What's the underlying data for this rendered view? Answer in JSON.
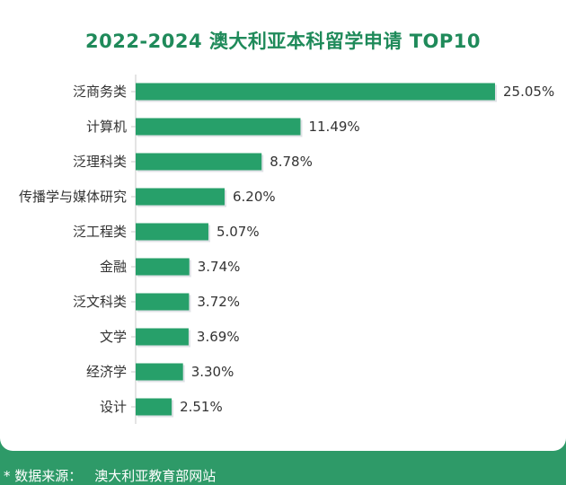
{
  "chart_data": {
    "type": "bar",
    "orientation": "horizontal",
    "title": "2022-2024 澳大利亚本科留学申请 TOP10",
    "categories": [
      "泛商务类",
      "计算机",
      "泛理科类",
      "传播学与媒体研究",
      "泛工程类",
      "金融",
      "泛文科类",
      "文学",
      "经济学",
      "设计"
    ],
    "values": [
      25.05,
      11.49,
      8.78,
      6.2,
      5.07,
      3.74,
      3.72,
      3.69,
      3.3,
      2.51
    ],
    "value_labels": [
      "25.05%",
      "11.49%",
      "8.78%",
      "6.20%",
      "5.07%",
      "3.74%",
      "3.72%",
      "3.69%",
      "3.30%",
      "2.51%"
    ],
    "xlim": [
      0,
      25.05
    ],
    "grid": false,
    "legend": "none",
    "bar_color": "#27a06a"
  },
  "source": {
    "label": "* 数据来源：",
    "value": "澳大利亚教育部网站"
  },
  "colors": {
    "title": "#1f8a5a",
    "background": "#2e9a68",
    "card": "#ffffff"
  }
}
